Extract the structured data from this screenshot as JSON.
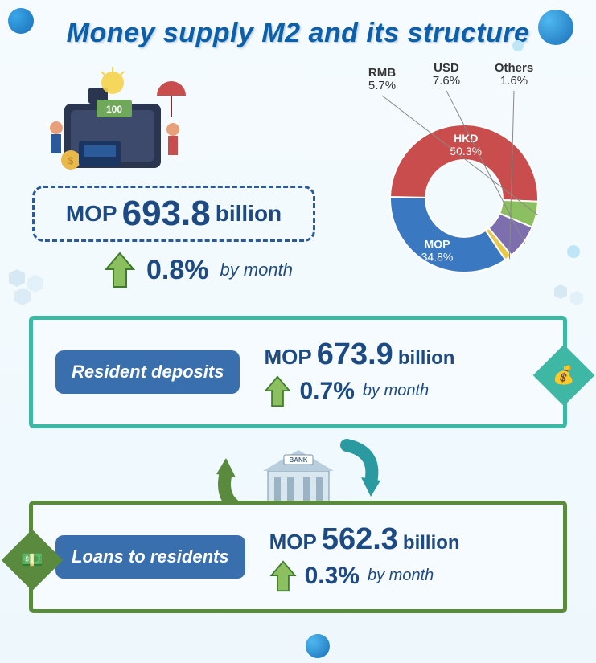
{
  "title": "Money supply M2 and its structure",
  "colors": {
    "title": "#0d5fa8",
    "text_primary": "#1d4a82",
    "dashed_border": "#2a5a9a",
    "panel_label_bg": "#3a6fae",
    "panel_deposits_border": "#3eb8a4",
    "panel_loans_border": "#5a8a3d",
    "arrow_fill": "#8bbf5f",
    "arrow_stroke": "#3f7a2e",
    "background_start": "#f5fbff",
    "background_end": "#eef8fc",
    "bubble_primary": "#1a6fb8",
    "bubble_light": "#bfe6f7"
  },
  "m2": {
    "currency": "MOP",
    "value": "693.8",
    "unit": "billion",
    "change_pct": "0.8%",
    "change_label": "by month",
    "change_direction": "up"
  },
  "donut": {
    "type": "donut",
    "inner_radius_ratio": 0.52,
    "slices": [
      {
        "label": "MOP",
        "pct": 34.8,
        "color": "#3a78c2",
        "label_pos": "inside-right"
      },
      {
        "label": "HKD",
        "pct": 50.3,
        "color": "#c94d4d",
        "label_pos": "inside-bottom"
      },
      {
        "label": "RMB",
        "pct": 5.7,
        "color": "#8bbf5f",
        "label_pos": "outside-top-left"
      },
      {
        "label": "USD",
        "pct": 7.6,
        "color": "#7d6fae",
        "label_pos": "outside-top"
      },
      {
        "label": "Others",
        "pct": 1.6,
        "color": "#e8c84a",
        "label_pos": "outside-top-right"
      }
    ],
    "start_angle_deg": 56
  },
  "deposits": {
    "label": "Resident deposits",
    "currency": "MOP",
    "value": "673.9",
    "unit": "billion",
    "change_pct": "0.7%",
    "change_label": "by month",
    "change_direction": "up"
  },
  "loans": {
    "label": "Loans to residents",
    "currency": "MOP",
    "value": "562.3",
    "unit": "billion",
    "change_pct": "0.3%",
    "change_label": "by month",
    "change_direction": "up"
  },
  "decor": {
    "briefcase_emoji": "💼",
    "bulb_emoji": "💡",
    "people_emoji": "👫",
    "bank_emoji": "🏦",
    "hand_money_emoji": "💰",
    "cash_emoji": "💵"
  }
}
